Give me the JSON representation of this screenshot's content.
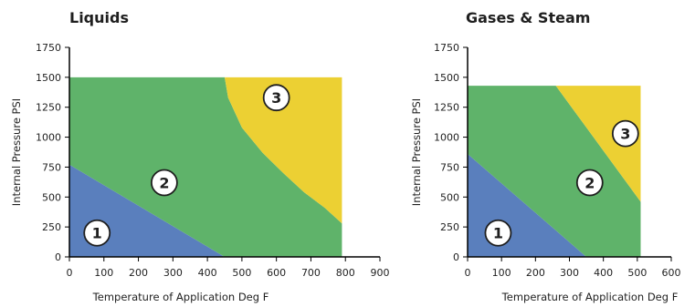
{
  "colors": {
    "zone1": "#5a7fbd",
    "zone2": "#5fb36a",
    "zone3": "#ecd033",
    "axis": "#000000",
    "badge_fill": "#ffffff",
    "badge_stroke": "#1f1f1f"
  },
  "chart_data": [
    {
      "type": "area",
      "title": "Liquids",
      "xlabel": "Temperature of Application Deg F",
      "ylabel": "Internal Pressure PSI",
      "xlim": [
        0,
        900
      ],
      "ylim": [
        0,
        1750
      ],
      "xticks": [
        0,
        100,
        200,
        300,
        400,
        500,
        600,
        700,
        800,
        900
      ],
      "yticks": [
        0,
        250,
        500,
        750,
        1000,
        1250,
        1500,
        1750
      ],
      "grid": false,
      "plot_extent": {
        "x": [
          0,
          790
        ],
        "y": [
          0,
          1500
        ]
      },
      "regions": [
        {
          "label": "1",
          "boundary": [
            [
              0,
              0
            ],
            [
              0,
              770
            ],
            [
              450,
              0
            ]
          ],
          "label_at": [
            80,
            200
          ]
        },
        {
          "label": "2",
          "boundary": [
            [
              0,
              770
            ],
            [
              0,
              1500
            ],
            [
              450,
              1500
            ],
            [
              460,
              1330
            ],
            [
              500,
              1080
            ],
            [
              560,
              870
            ],
            [
              620,
              700
            ],
            [
              680,
              540
            ],
            [
              740,
              410
            ],
            [
              790,
              280
            ],
            [
              790,
              0
            ],
            [
              450,
              0
            ]
          ],
          "label_at": [
            275,
            620
          ]
        },
        {
          "label": "3",
          "boundary": [
            [
              450,
              1500
            ],
            [
              790,
              1500
            ],
            [
              790,
              280
            ],
            [
              740,
              410
            ],
            [
              680,
              540
            ],
            [
              620,
              700
            ],
            [
              560,
              870
            ],
            [
              500,
              1080
            ],
            [
              460,
              1330
            ]
          ],
          "label_at": [
            600,
            1330
          ]
        }
      ]
    },
    {
      "type": "area",
      "title": "Gases & Steam",
      "xlabel": "Temperature of Application Deg F",
      "ylabel": "Internal Pressure PSI",
      "xlim": [
        0,
        600
      ],
      "ylim": [
        0,
        1750
      ],
      "xticks": [
        0,
        100,
        200,
        300,
        400,
        500,
        600
      ],
      "yticks": [
        0,
        250,
        500,
        750,
        1000,
        1250,
        1500,
        1750
      ],
      "grid": false,
      "plot_extent": {
        "x": [
          0,
          510
        ],
        "y": [
          0,
          1430
        ]
      },
      "regions": [
        {
          "label": "1",
          "boundary": [
            [
              0,
              0
            ],
            [
              0,
              860
            ],
            [
              350,
              0
            ]
          ],
          "label_at": [
            90,
            200
          ]
        },
        {
          "label": "2",
          "boundary": [
            [
              0,
              860
            ],
            [
              0,
              1430
            ],
            [
              260,
              1430
            ],
            [
              510,
              460
            ],
            [
              510,
              0
            ],
            [
              350,
              0
            ]
          ],
          "label_at": [
            360,
            620
          ]
        },
        {
          "label": "3",
          "boundary": [
            [
              260,
              1430
            ],
            [
              510,
              1430
            ],
            [
              510,
              460
            ]
          ],
          "label_at": [
            465,
            1030
          ]
        }
      ]
    }
  ]
}
